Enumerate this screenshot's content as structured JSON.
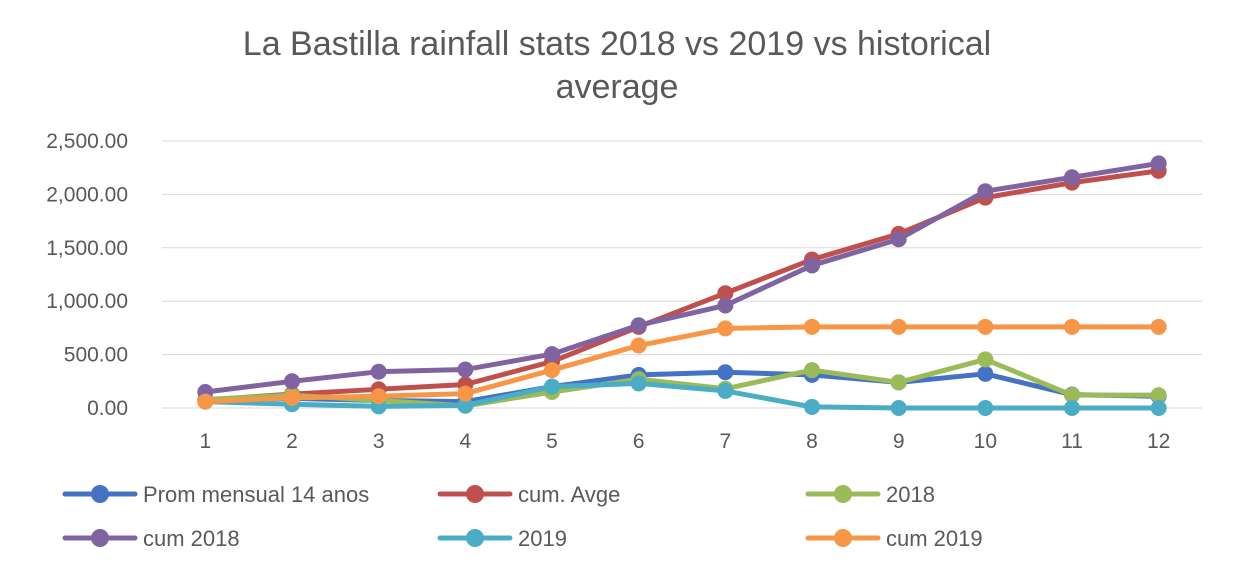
{
  "chart_data": {
    "type": "line",
    "title": "La Bastilla rainfall stats 2018 vs 2019 vs historical average",
    "title_lines": [
      "La Bastilla rainfall stats 2018 vs 2019 vs historical",
      "average"
    ],
    "xlabel": "",
    "ylabel": "",
    "categories": [
      "1",
      "2",
      "3",
      "4",
      "5",
      "6",
      "7",
      "8",
      "9",
      "10",
      "11",
      "12"
    ],
    "ylim": [
      0,
      2500
    ],
    "yticks": [
      0,
      500,
      1000,
      1500,
      2000,
      2500
    ],
    "ytick_labels": [
      "0.00",
      "500.00",
      "1,000.00",
      "1,500.00",
      "2,000.00",
      "2,500.00"
    ],
    "grid": true,
    "legend_position": "bottom",
    "series": [
      {
        "name": "Prom mensual 14 anos",
        "color": "#4472C4",
        "values": [
          75,
          90,
          70,
          60,
          200,
          310,
          335,
          310,
          240,
          320,
          125,
          110
        ]
      },
      {
        "name": "cum. Avge",
        "color": "#C0504D",
        "values": [
          75,
          130,
          175,
          220,
          435,
          760,
          1075,
          1390,
          1630,
          1970,
          2110,
          2220
        ]
      },
      {
        "name": "2018",
        "color": "#9BBB59",
        "values": [
          80,
          120,
          70,
          20,
          150,
          270,
          180,
          355,
          240,
          455,
          120,
          120
        ]
      },
      {
        "name": "cum 2018",
        "color": "#8064A2",
        "values": [
          150,
          250,
          340,
          360,
          505,
          775,
          960,
          1335,
          1580,
          2030,
          2160,
          2290
        ]
      },
      {
        "name": "2019",
        "color": "#4BACC6",
        "values": [
          60,
          35,
          15,
          25,
          200,
          230,
          160,
          10,
          0,
          0,
          0,
          0
        ]
      },
      {
        "name": "cum 2019",
        "color": "#F79646",
        "values": [
          60,
          95,
          110,
          135,
          355,
          585,
          745,
          760,
          760,
          760,
          760,
          760
        ]
      }
    ]
  }
}
